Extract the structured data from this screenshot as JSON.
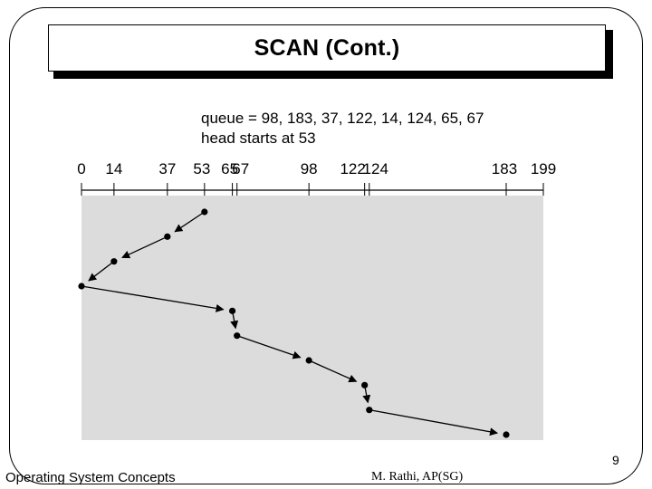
{
  "slide": {
    "title": "SCAN (Cont.)",
    "queue_text": "queue = 98, 183, 37, 122, 14, 124, 65, 67",
    "head_text": "head starts at 53",
    "footer_left": "Operating System Concepts",
    "footer_center": "M. Rathi, AP(SG)",
    "page_number": "9"
  },
  "diagram_data": {
    "axis_min": 0,
    "axis_max": 199,
    "ticks": [
      0,
      14,
      37,
      53,
      65,
      67,
      98,
      122,
      124,
      183,
      199
    ],
    "path": [
      53,
      37,
      14,
      0,
      65,
      67,
      98,
      122,
      124,
      183
    ],
    "background_color": "#dcdcdc",
    "line_color": "#000000"
  }
}
